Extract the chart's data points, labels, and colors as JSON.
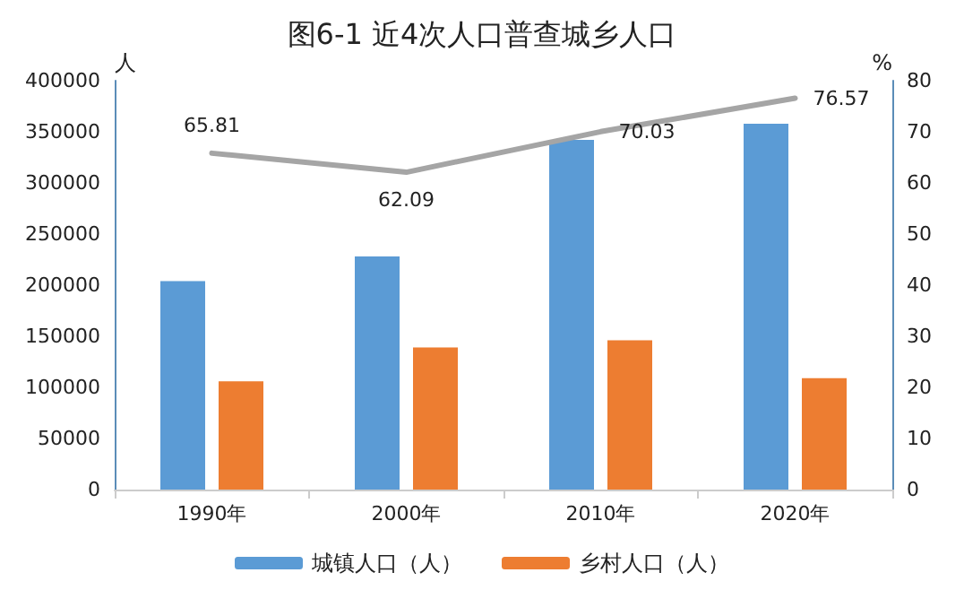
{
  "chart_data": {
    "type": "bar",
    "title": "图6-1 近4次人口普查城乡人口",
    "ylabel": "人",
    "y2label": "%",
    "categories": [
      "1990年",
      "2000年",
      "2010年",
      "2020年"
    ],
    "series": [
      {
        "name": "城镇人口（人）",
        "color": "#5b9bd5",
        "values": [
          204000,
          228000,
          342000,
          358000
        ]
      },
      {
        "name": "乡村人口（人）",
        "color": "#ed7d31",
        "values": [
          106000,
          139000,
          146000,
          109000
        ]
      },
      {
        "type": "line",
        "axis": "y2",
        "color": "#a5a5a5",
        "values": [
          65.81,
          62.09,
          70.03,
          76.57
        ],
        "data_labels": true,
        "marker": "none"
      }
    ],
    "ylim": [
      0,
      400000
    ],
    "yticks": [
      0,
      50000,
      100000,
      150000,
      200000,
      250000,
      300000,
      350000,
      400000
    ],
    "y2lim": [
      0,
      80
    ],
    "y2ticks": [
      0,
      10,
      20,
      30,
      40,
      50,
      60,
      70,
      80
    ],
    "grid": false,
    "legend": "bottom"
  }
}
